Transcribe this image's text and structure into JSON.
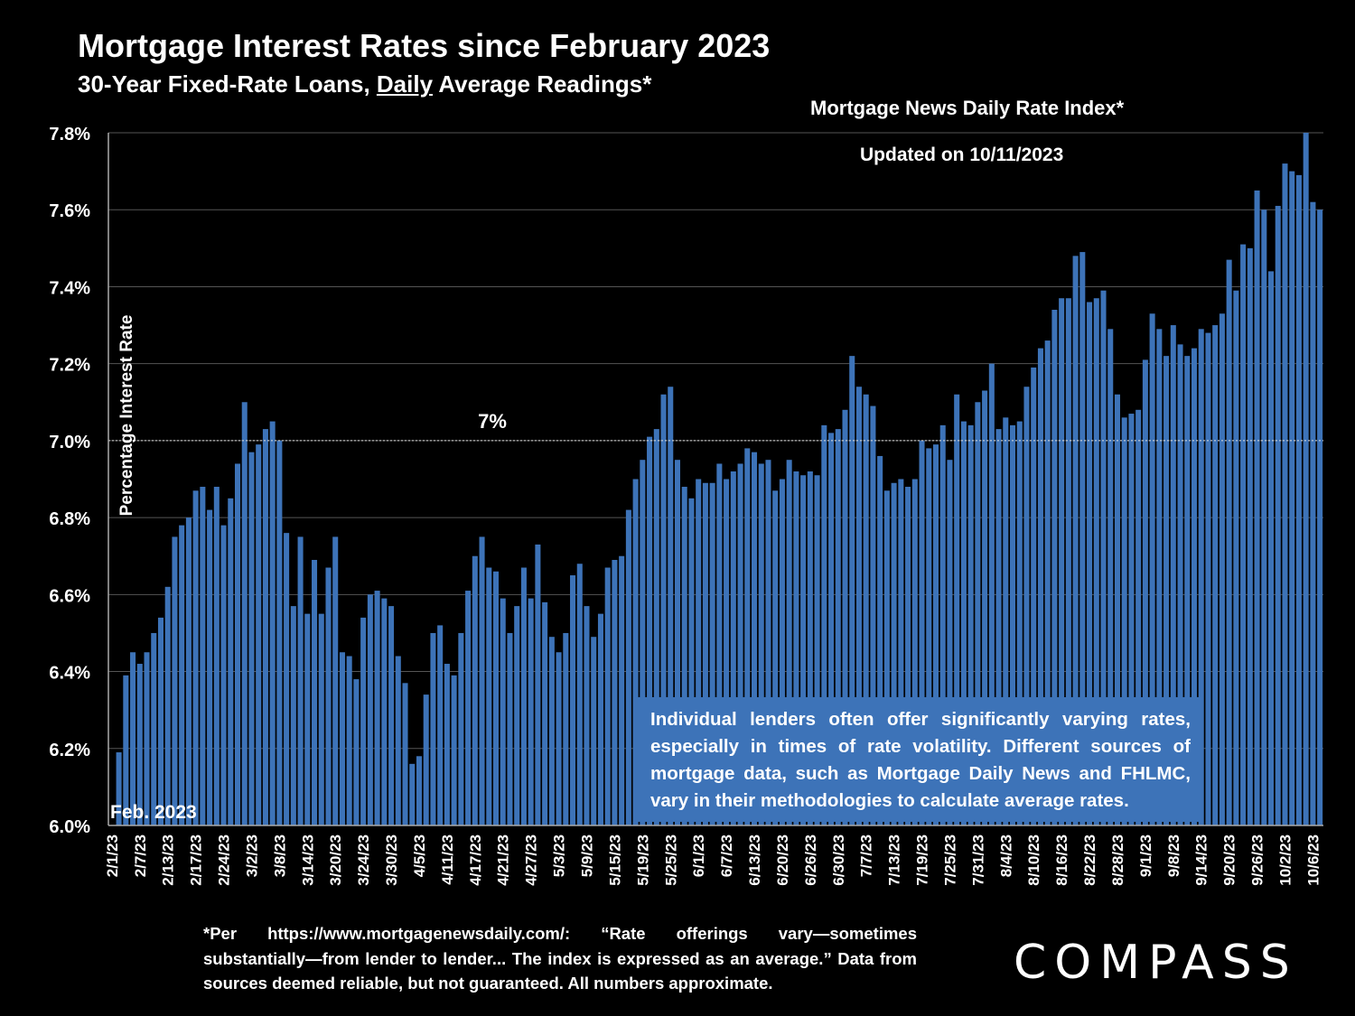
{
  "header": {
    "title": "Mortgage Interest Rates since February 2023",
    "subtitle_pre": "30-Year Fixed-Rate Loans, ",
    "subtitle_underlined": "Daily",
    "subtitle_post": " Average Readings*",
    "source": "Mortgage News Daily Rate Index*",
    "updated": "Updated on 10/11/2023"
  },
  "note": "Individual lenders often offer significantly varying rates, especially in times of rate volatility. Different sources of mortgage data, such as Mortgage Daily News and FHLMC, vary in their methodologies to calculate average rates.",
  "footnote": "*Per https://www.mortgagenewsdaily.com/: “Rate offerings vary—sometimes substantially—from lender to lender... The index is expressed as an average.” Data from sources deemed reliable, but not guaranteed. All numbers approximate.",
  "logo": "COMPASS",
  "colors": {
    "bar": "#3d73b8",
    "background": "#000000",
    "text": "#ffffff"
  },
  "chart_data": {
    "type": "bar",
    "ylabel": "Percentage Interest  Rate",
    "ylim": [
      6.0,
      7.8
    ],
    "yticks": [
      "6.0%",
      "6.2%",
      "6.4%",
      "6.6%",
      "6.8%",
      "7.0%",
      "7.2%",
      "7.4%",
      "7.6%",
      "7.8%"
    ],
    "yticks_values": [
      6.0,
      6.2,
      6.4,
      6.6,
      6.8,
      7.0,
      7.2,
      7.4,
      7.6,
      7.8
    ],
    "grid": true,
    "reference_line": {
      "value": 7.0,
      "label": "7%"
    },
    "start_annotation": "Feb. 2023",
    "xtick_labels": [
      "2/1/23",
      "2/7/23",
      "2/13/23",
      "2/17/23",
      "2/24/23",
      "3/2/23",
      "3/8/23",
      "3/14/23",
      "3/20/23",
      "3/24/23",
      "3/30/23",
      "4/5/23",
      "4/11/23",
      "4/17/23",
      "4/21/23",
      "4/27/23",
      "5/3/23",
      "5/9/23",
      "5/15/23",
      "5/19/23",
      "5/25/23",
      "6/1/23",
      "6/7/23",
      "6/13/23",
      "6/20/23",
      "6/26/23",
      "6/30/23",
      "7/7/23",
      "7/13/23",
      "7/19/23",
      "7/25/23",
      "7/31/23",
      "8/4/23",
      "8/10/23",
      "8/16/23",
      "8/22/23",
      "8/28/23",
      "9/1/23",
      "9/8/23",
      "9/14/23",
      "9/20/23",
      "9/26/23",
      "10/2/23",
      "10/6/23"
    ],
    "xtick_every": 4,
    "values": [
      6.0,
      6.19,
      6.39,
      6.45,
      6.42,
      6.45,
      6.5,
      6.54,
      6.62,
      6.75,
      6.78,
      6.8,
      6.87,
      6.88,
      6.82,
      6.88,
      6.78,
      6.85,
      6.94,
      7.1,
      6.97,
      6.99,
      7.03,
      7.05,
      7.0,
      6.76,
      6.57,
      6.75,
      6.55,
      6.69,
      6.55,
      6.67,
      6.75,
      6.45,
      6.44,
      6.38,
      6.54,
      6.6,
      6.61,
      6.59,
      6.57,
      6.44,
      6.37,
      6.16,
      6.18,
      6.34,
      6.5,
      6.52,
      6.42,
      6.39,
      6.5,
      6.61,
      6.7,
      6.75,
      6.67,
      6.66,
      6.59,
      6.5,
      6.57,
      6.67,
      6.59,
      6.73,
      6.58,
      6.49,
      6.45,
      6.5,
      6.65,
      6.68,
      6.57,
      6.49,
      6.55,
      6.67,
      6.69,
      6.7,
      6.82,
      6.9,
      6.95,
      7.01,
      7.03,
      7.12,
      7.14,
      6.95,
      6.88,
      6.85,
      6.9,
      6.89,
      6.89,
      6.94,
      6.9,
      6.92,
      6.94,
      6.98,
      6.97,
      6.94,
      6.95,
      6.87,
      6.9,
      6.95,
      6.92,
      6.91,
      6.92,
      6.91,
      7.04,
      7.02,
      7.03,
      7.08,
      7.22,
      7.14,
      7.12,
      7.09,
      6.96,
      6.87,
      6.89,
      6.9,
      6.88,
      6.9,
      7.0,
      6.98,
      6.99,
      7.04,
      6.95,
      7.12,
      7.05,
      7.04,
      7.1,
      7.13,
      7.2,
      7.03,
      7.06,
      7.04,
      7.05,
      7.14,
      7.19,
      7.24,
      7.26,
      7.34,
      7.37,
      7.37,
      7.48,
      7.49,
      7.36,
      7.37,
      7.39,
      7.29,
      7.12,
      7.06,
      7.07,
      7.08,
      7.21,
      7.33,
      7.29,
      7.22,
      7.3,
      7.25,
      7.22,
      7.24,
      7.29,
      7.28,
      7.3,
      7.33,
      7.47,
      7.39,
      7.51,
      7.5,
      7.65,
      7.6,
      7.44,
      7.61,
      7.72,
      7.7,
      7.69,
      7.8,
      7.62,
      7.6
    ]
  }
}
